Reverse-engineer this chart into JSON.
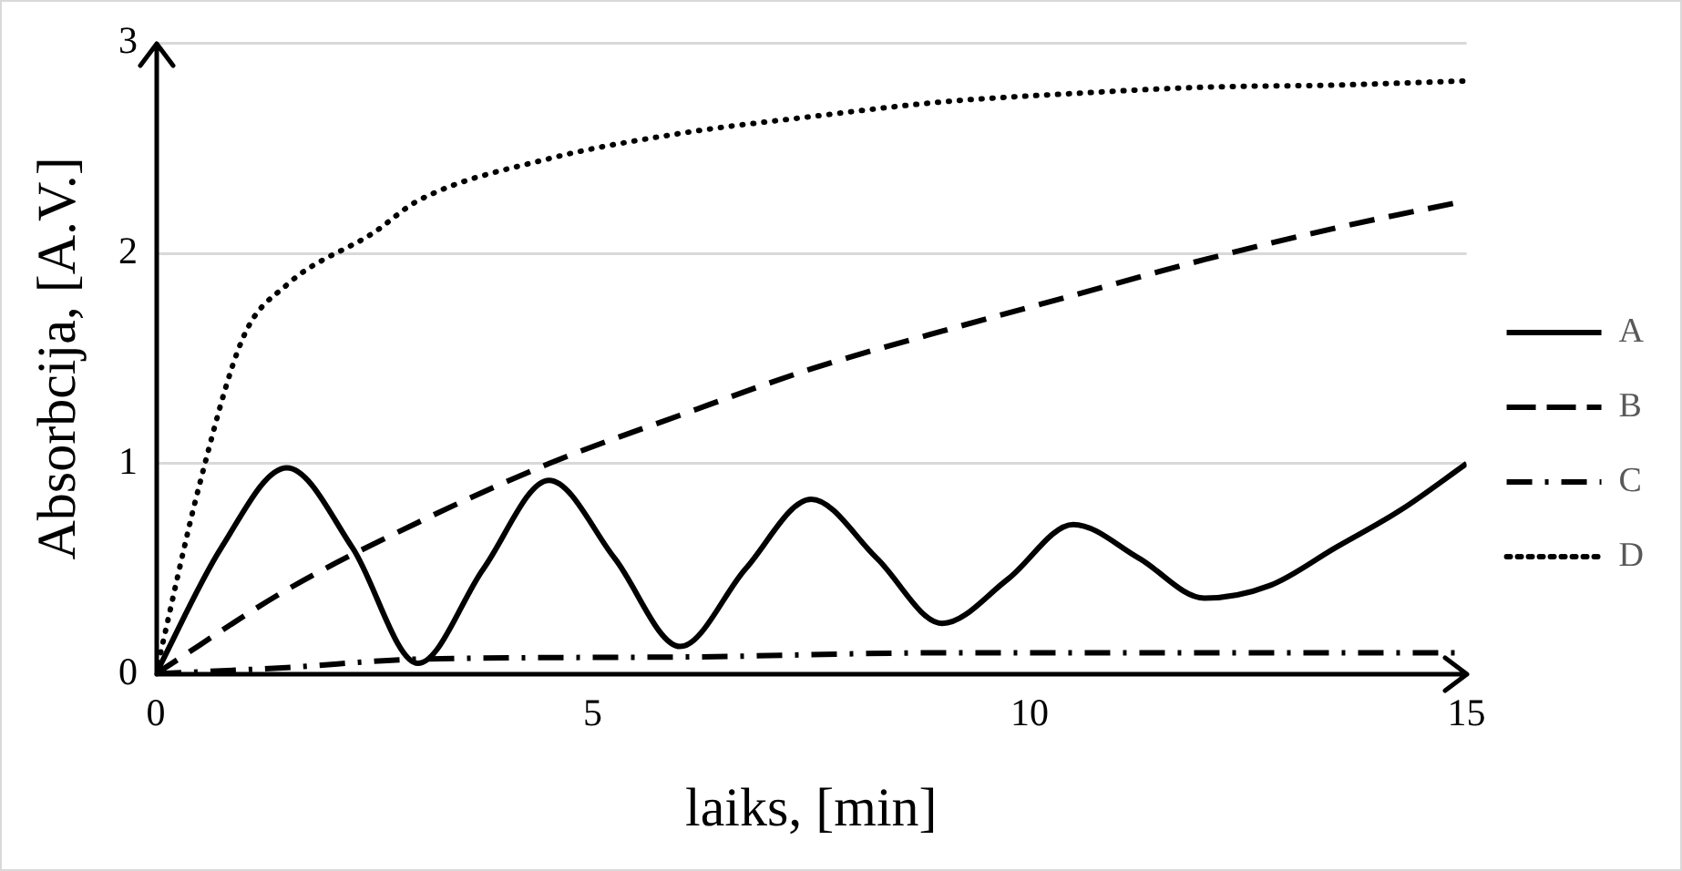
{
  "chart_data": {
    "type": "line",
    "xlabel": "laiks, [min]",
    "ylabel": "Absorbcija, [A.V.]",
    "xlim": [
      0,
      15
    ],
    "xticks": [
      0,
      5,
      10,
      15
    ],
    "ylim": [
      0,
      3
    ],
    "yticks": [
      0,
      1,
      2,
      3
    ],
    "grid": "y",
    "legend": "right",
    "marker": "none",
    "series": [
      {
        "name": "A",
        "color": "#000000",
        "line_style": "solid",
        "x": [
          0,
          0.75,
          1.5,
          2.25,
          3,
          3.75,
          4.5,
          5.25,
          6,
          6.75,
          7.5,
          8.25,
          9,
          9.75,
          10.5,
          11.25,
          12,
          12.75,
          13.5,
          14.25,
          15
        ],
        "values": [
          0,
          0.6,
          0.98,
          0.6,
          0.05,
          0.5,
          0.92,
          0.55,
          0.13,
          0.5,
          0.83,
          0.55,
          0.24,
          0.45,
          0.71,
          0.55,
          0.36,
          0.42,
          0.6,
          0.78,
          1.0
        ]
      },
      {
        "name": "B",
        "color": "#000000",
        "line_style": "dashed",
        "x": [
          0,
          1.5,
          3,
          4.5,
          6,
          7.5,
          9,
          10.5,
          12,
          13.5,
          15
        ],
        "values": [
          0,
          0.4,
          0.72,
          1.0,
          1.23,
          1.45,
          1.63,
          1.8,
          1.97,
          2.12,
          2.25
        ]
      },
      {
        "name": "C",
        "color": "#000000",
        "line_style": "dashdot",
        "x": [
          0,
          1.5,
          3,
          6,
          9,
          12,
          15
        ],
        "values": [
          0,
          0.03,
          0.07,
          0.08,
          0.1,
          0.1,
          0.1
        ]
      },
      {
        "name": "D",
        "color": "#000000",
        "line_style": "dotted",
        "x": [
          0,
          0.5,
          1,
          1.5,
          2.5,
          3,
          4.5,
          6,
          7.5,
          9,
          10.5,
          12,
          13.5,
          15
        ],
        "values": [
          0,
          0.9,
          1.6,
          1.85,
          2.1,
          2.25,
          2.45,
          2.57,
          2.65,
          2.72,
          2.76,
          2.79,
          2.8,
          2.82
        ]
      }
    ]
  }
}
